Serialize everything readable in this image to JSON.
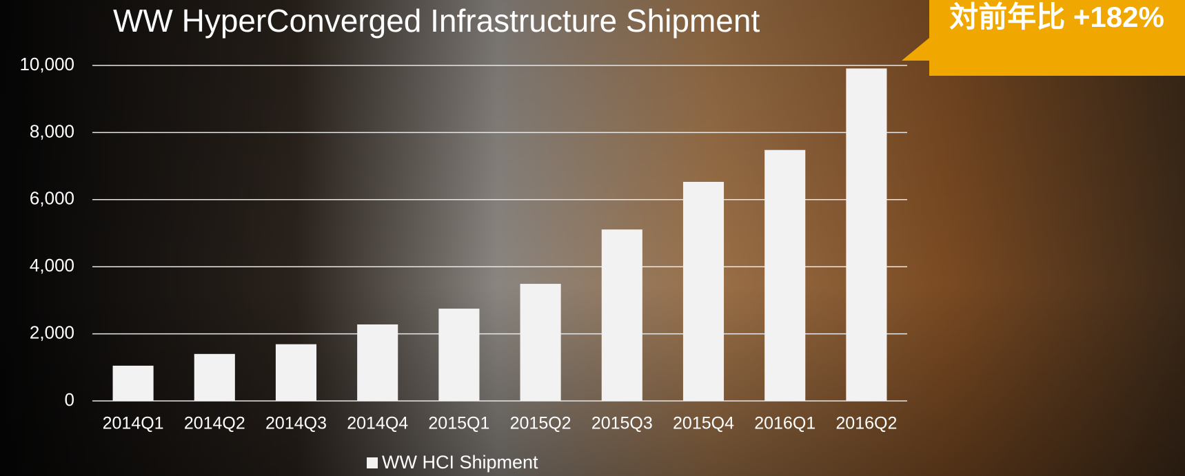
{
  "chart_data": {
    "type": "bar",
    "title": "WW HyperConverged Infrastructure Shipment",
    "annotation": "対前年比 +182%",
    "categories": [
      "2014Q1",
      "2014Q2",
      "2014Q3",
      "2014Q4",
      "2015Q1",
      "2015Q2",
      "2015Q3",
      "2015Q4",
      "2016Q1",
      "2016Q2"
    ],
    "series": [
      {
        "name": "WW HCI Shipment",
        "color": "#f2f2f2",
        "values": [
          1050,
          1400,
          1690,
          2280,
          2750,
          3490,
          5110,
          6530,
          7480,
          9910
        ]
      }
    ],
    "ylim": [
      0,
      10000
    ],
    "yticks": [
      0,
      {
        "value": 2000,
        "label": "2,000"
      },
      {
        "value": 4000,
        "label": "4,000"
      },
      {
        "value": 6000,
        "label": "6,000"
      },
      {
        "value": 8000,
        "label": "8,000"
      },
      {
        "value": 10000,
        "label": "10,000"
      }
    ],
    "grid": true,
    "legend": "bottom"
  }
}
